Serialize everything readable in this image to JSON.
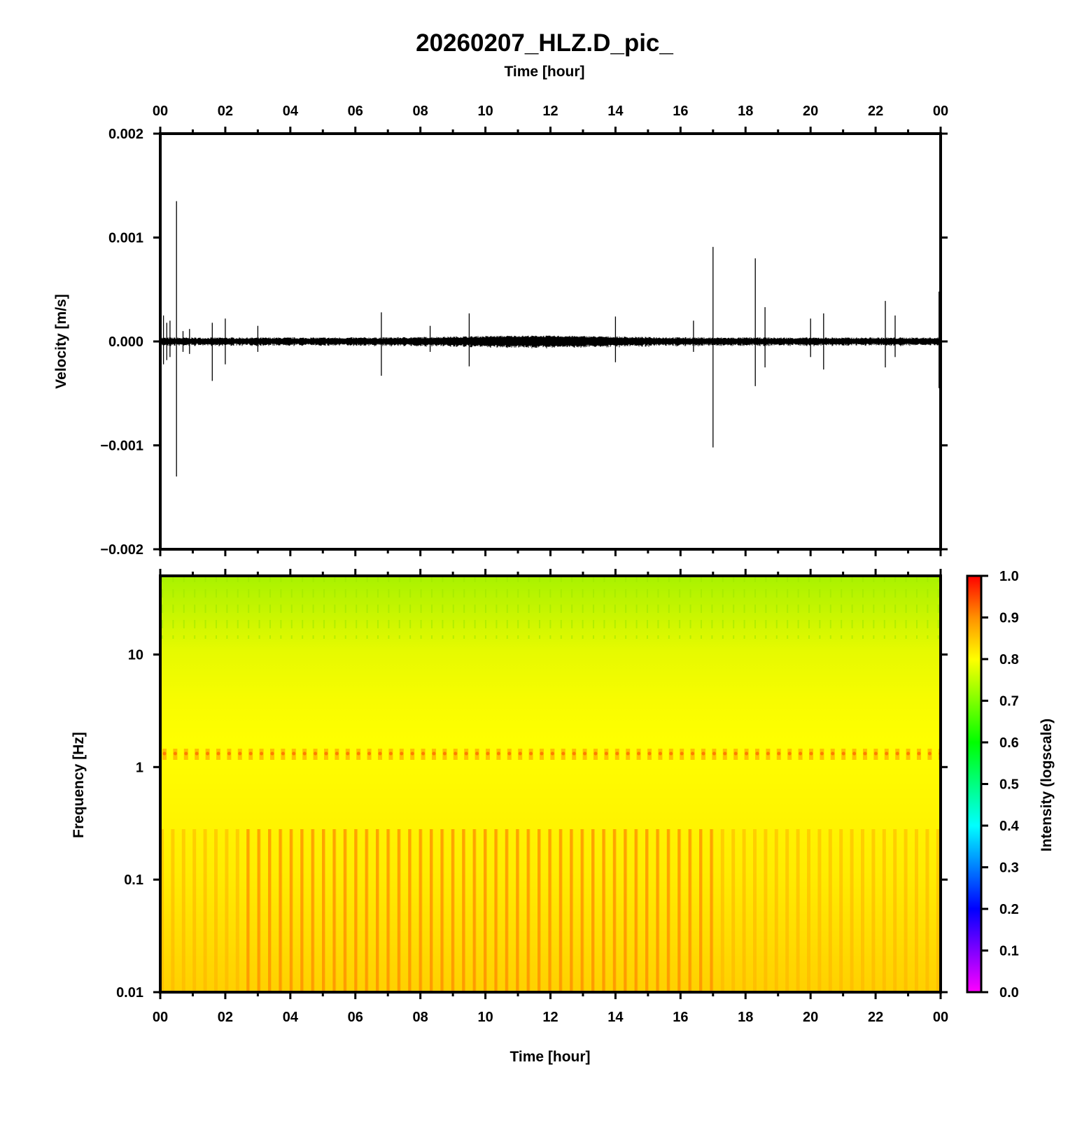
{
  "title": "20260207_HLZ.D_pic_",
  "time_label_top": "Time [hour]",
  "time_label_bottom": "Time [hour]",
  "chart_data": [
    {
      "type": "line",
      "name": "waveform",
      "ylabel": "Velocity [m/s]",
      "xlabel": "Time [hour]",
      "xlim": [
        0,
        24
      ],
      "ylim": [
        -0.002,
        0.002
      ],
      "x_ticks": [
        "00",
        "02",
        "04",
        "06",
        "08",
        "10",
        "12",
        "14",
        "16",
        "18",
        "20",
        "22",
        "00"
      ],
      "y_ticks": [
        {
          "value": 0.002,
          "label": "0.002"
        },
        {
          "value": 0.001,
          "label": "0.001"
        },
        {
          "value": 0.0,
          "label": "0.000"
        },
        {
          "value": -0.001,
          "label": "−0.001"
        },
        {
          "value": -0.002,
          "label": "−0.002"
        }
      ],
      "noise_amplitude": 3e-05,
      "spikes": [
        {
          "t": 0.1,
          "max": 0.00025,
          "min": -0.00022
        },
        {
          "t": 0.2,
          "max": 0.00018,
          "min": -0.00018
        },
        {
          "t": 0.3,
          "max": 0.0002,
          "min": -0.00015
        },
        {
          "t": 0.5,
          "max": 0.00135,
          "min": -0.0013
        },
        {
          "t": 0.7,
          "max": 0.0001,
          "min": -0.0001
        },
        {
          "t": 0.9,
          "max": 0.00012,
          "min": -0.00012
        },
        {
          "t": 1.6,
          "max": 0.00018,
          "min": -0.00038
        },
        {
          "t": 2.0,
          "max": 0.00022,
          "min": -0.00022
        },
        {
          "t": 3.0,
          "max": 0.00015,
          "min": -0.0001
        },
        {
          "t": 6.8,
          "max": 0.00028,
          "min": -0.00033
        },
        {
          "t": 8.3,
          "max": 0.00015,
          "min": -0.0001
        },
        {
          "t": 9.5,
          "max": 0.00027,
          "min": -0.00024
        },
        {
          "t": 14.0,
          "max": 0.00024,
          "min": -0.0002
        },
        {
          "t": 16.4,
          "max": 0.0002,
          "min": -0.0001
        },
        {
          "t": 17.0,
          "max": 0.00091,
          "min": -0.00102
        },
        {
          "t": 18.3,
          "max": 0.0008,
          "min": -0.00043
        },
        {
          "t": 18.6,
          "max": 0.00033,
          "min": -0.00025
        },
        {
          "t": 20.0,
          "max": 0.00022,
          "min": -0.00015
        },
        {
          "t": 20.4,
          "max": 0.00027,
          "min": -0.00027
        },
        {
          "t": 22.3,
          "max": 0.00039,
          "min": -0.00025
        },
        {
          "t": 22.6,
          "max": 0.00025,
          "min": -0.00015
        },
        {
          "t": 23.95,
          "max": 0.00048,
          "min": -0.00045
        }
      ]
    },
    {
      "type": "heatmap",
      "name": "spectrogram",
      "ylabel": "Frequency [Hz]",
      "xlabel": "Time [hour]",
      "xlim": [
        0,
        24
      ],
      "ylim": [
        0.01,
        50
      ],
      "yscale": "log",
      "x_ticks": [
        "00",
        "02",
        "04",
        "06",
        "08",
        "10",
        "12",
        "14",
        "16",
        "18",
        "20",
        "22",
        "00"
      ],
      "y_ticks": [
        {
          "value": 10,
          "label": "10"
        },
        {
          "value": 1,
          "label": "1"
        },
        {
          "value": 0.1,
          "label": "0.1"
        },
        {
          "value": 0.01,
          "label": "0.01"
        }
      ],
      "colorbar": {
        "label": "Intensity (logscale)",
        "range": [
          0,
          1
        ],
        "ticks": [
          "0.0",
          "0.1",
          "0.2",
          "0.3",
          "0.4",
          "0.5",
          "0.6",
          "0.7",
          "0.8",
          "0.9",
          "1.0"
        ],
        "colors": [
          "#ff00ff",
          "#0000ff",
          "#00ffff",
          "#00ff00",
          "#ffff00",
          "#ff8000",
          "#ff0000"
        ]
      },
      "intensity_profile": [
        {
          "freq": 50,
          "intensity": 0.7
        },
        {
          "freq": 20,
          "intensity": 0.74
        },
        {
          "freq": 10,
          "intensity": 0.78
        },
        {
          "freq": 3,
          "intensity": 0.8
        },
        {
          "freq": 1.4,
          "intensity": 0.83
        },
        {
          "freq": 1.0,
          "intensity": 0.8
        },
        {
          "freq": 0.3,
          "intensity": 0.81
        },
        {
          "freq": 0.1,
          "intensity": 0.82
        },
        {
          "freq": 0.01,
          "intensity": 0.85
        }
      ],
      "bands": [
        {
          "fmin": 1.1,
          "fmax": 1.4,
          "intensity": 0.87
        },
        {
          "fmin": 0.01,
          "fmax": 0.26,
          "intensity": 0.88,
          "t_start": 2.5,
          "t_end": 17.2
        }
      ]
    }
  ]
}
